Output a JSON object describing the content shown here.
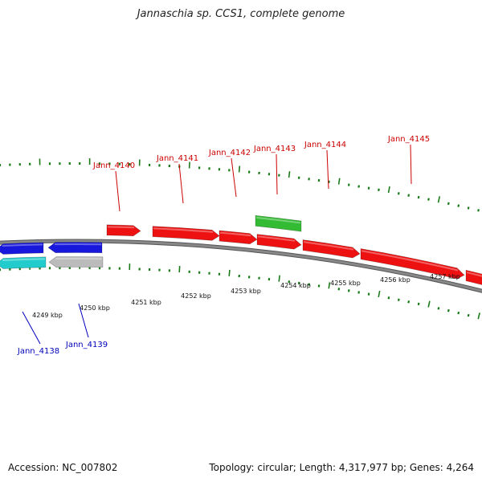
{
  "title": "Jannaschia sp. CCS1, complete genome",
  "footer": {
    "accession": "Accession: NC_007802",
    "summary": "Topology: circular; Length: 4,317,977 bp; Genes: 4,264"
  },
  "colors": {
    "forward_gene": "#ee1111",
    "reverse_gene": "#1818dd",
    "rna_gene": "#22cccc",
    "pseudo_gene": "#bbbbbb",
    "other_gene": "#33bb33",
    "backbone": "#888888",
    "tick": "#1a7a1a",
    "forward_label": "#cc0000",
    "reverse_label": "#0000bb"
  },
  "kbp_labels": [
    "4249 kbp",
    "4250 kbp",
    "4251 kbp",
    "4252 kbp",
    "4253 kbp",
    "4254 kbp",
    "4255 kbp",
    "4256 kbp",
    "4257 kbp"
  ],
  "genes": [
    {
      "name": "Jann_4138",
      "strand": "reverse",
      "kind": "rna",
      "labeled": true
    },
    {
      "name": "Jann_4139",
      "strand": "reverse",
      "kind": "pseudo",
      "labeled": true
    },
    {
      "name": "",
      "strand": "reverse",
      "kind": "reverse",
      "labeled": false
    },
    {
      "name": "",
      "strand": "reverse",
      "kind": "reverse",
      "labeled": false
    },
    {
      "name": "Jann_4140",
      "strand": "forward",
      "kind": "forward",
      "labeled": true
    },
    {
      "name": "Jann_4141",
      "strand": "forward",
      "kind": "forward",
      "labeled": true
    },
    {
      "name": "Jann_4142",
      "strand": "forward",
      "kind": "forward",
      "labeled": true
    },
    {
      "name": "Jann_4143",
      "strand": "forward",
      "kind": "other",
      "labeled": true
    },
    {
      "name": "Jann_4144",
      "strand": "forward",
      "kind": "forward",
      "labeled": true
    },
    {
      "name": "Jann_4145",
      "strand": "forward",
      "kind": "forward",
      "labeled": true
    },
    {
      "name": "",
      "strand": "forward",
      "kind": "forward",
      "labeled": false
    }
  ]
}
